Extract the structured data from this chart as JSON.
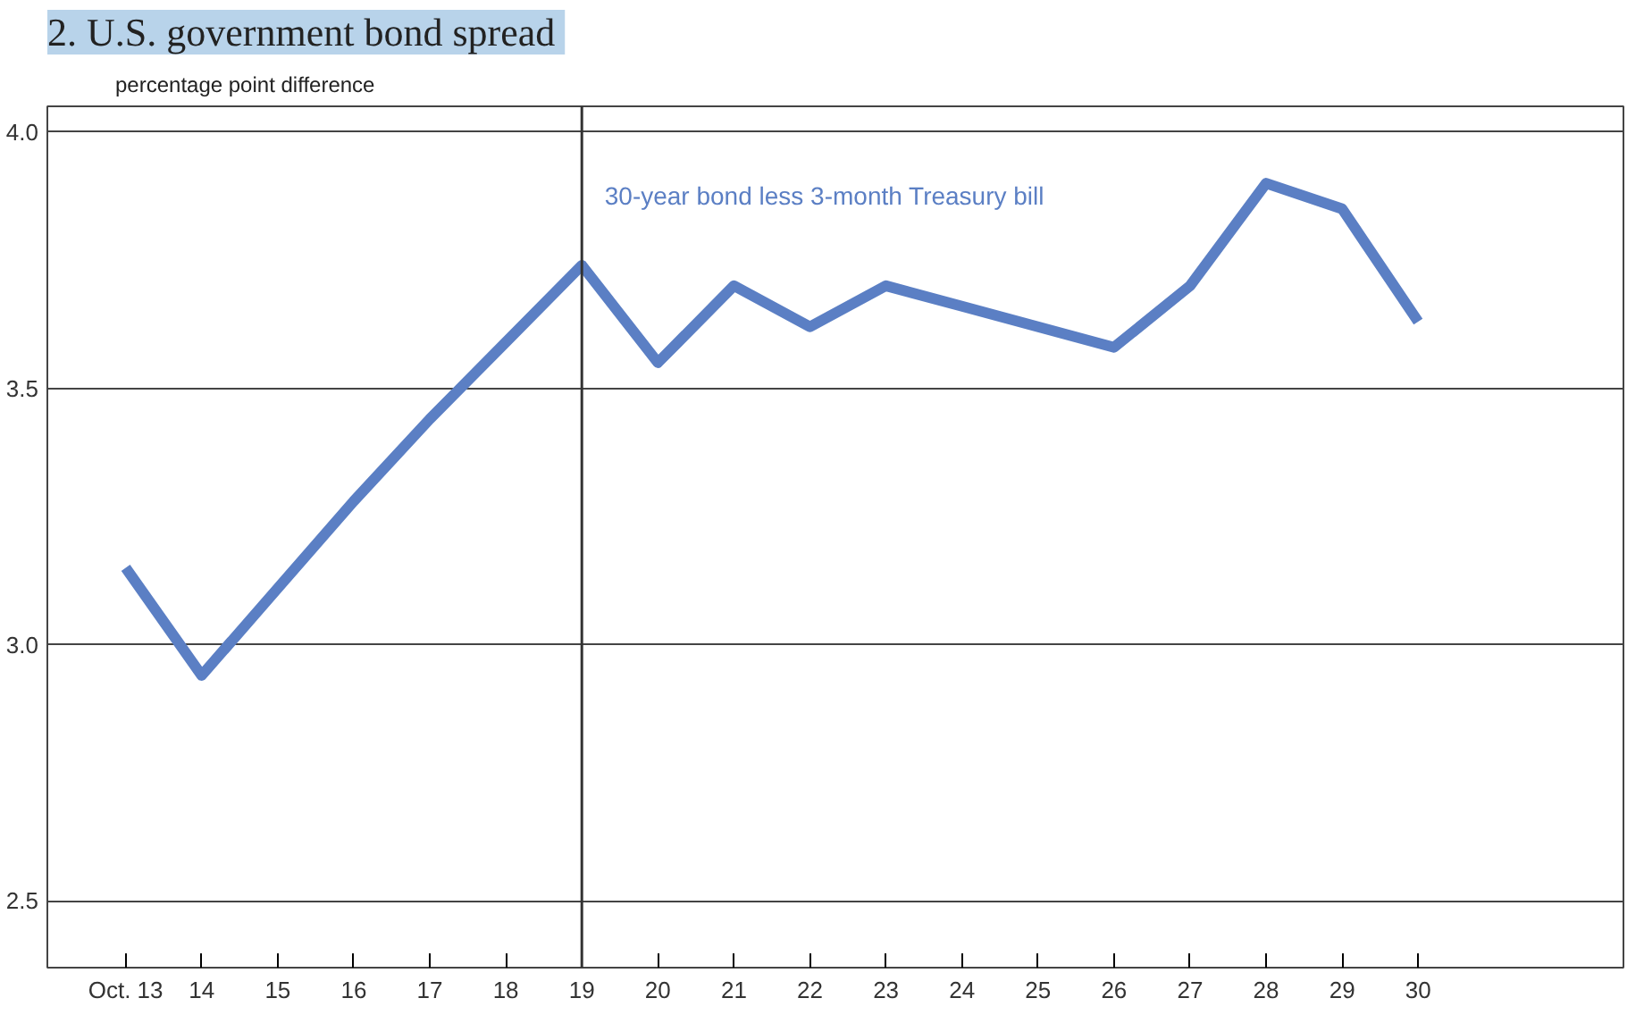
{
  "chart_data": {
    "type": "line",
    "title": "2.  U.S. government bond spread",
    "ylabel": "percentage point difference",
    "categories": [
      "Oct. 13",
      "14",
      "15",
      "16",
      "17",
      "18",
      "19",
      "20",
      "21",
      "22",
      "23",
      "24",
      "25",
      "26",
      "27",
      "28",
      "29",
      "30"
    ],
    "series": [
      {
        "color": "#5b7fc4",
        "values": [
          3.15,
          2.94,
          3.11,
          3.28,
          3.44,
          3.59,
          3.74,
          3.55,
          3.7,
          3.62,
          3.7,
          3.66,
          3.62,
          3.58,
          3.7,
          3.9,
          3.85,
          3.63
        ]
      }
    ],
    "ylim": [
      2.37,
      4.05
    ],
    "yticks": [
      {
        "value": 2.5,
        "label": "2.5"
      },
      {
        "value": 3,
        "label": "3.0"
      },
      {
        "value": 3.5,
        "label": "3.5"
      },
      {
        "value": 4,
        "label": "4.0"
      }
    ],
    "grid": "y",
    "marker": "none",
    "line_style": "solid",
    "ref_lines": [
      {
        "axis": "x",
        "value": "19",
        "color": "#333333"
      }
    ],
    "annotations": [
      "30-year bond less 3-month Treasury bill"
    ]
  }
}
